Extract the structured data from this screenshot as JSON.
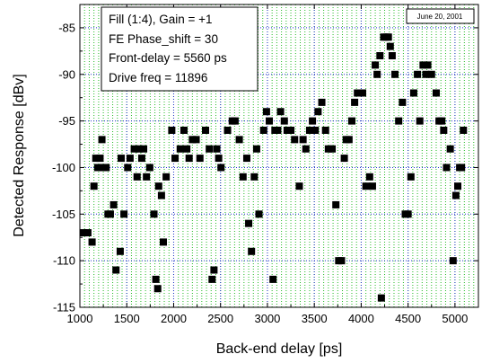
{
  "chart_data": {
    "type": "scatter",
    "title": "",
    "xlabel": "Back-end delay [ps]",
    "ylabel": "Detected Response  [dBv]",
    "xlim": [
      1000,
      5250
    ],
    "ylim": [
      -115,
      -82.5
    ],
    "xticks": [
      1000,
      1500,
      2000,
      2500,
      3000,
      3500,
      4000,
      4500,
      5000
    ],
    "yticks": [
      -85,
      -90,
      -95,
      -100,
      -105,
      -110,
      -115
    ],
    "xtick_labels": [
      "1000",
      "1500",
      "2000",
      "2500",
      "3000",
      "3500",
      "4000",
      "4500",
      "5000"
    ],
    "ytick_labels": [
      "-85",
      "-90",
      "-95",
      "-100",
      "-105",
      "-110",
      "-115"
    ],
    "grid": true,
    "marker": "square",
    "marker_color": "#000000",
    "grid_colors": {
      "x_dotted": "#22bb22",
      "y_dotted": "#2233cc"
    },
    "annotation_lines": [
      "Fill (1:4), Gain = +1",
      "FE Phase_shift = 30",
      "Front-delay = 5560 ps",
      "Drive freq = 11896"
    ],
    "date_label": "June 20, 2001",
    "series": [
      {
        "points": [
          [
            1040,
            -107
          ],
          [
            1085,
            -107
          ],
          [
            1130,
            -108
          ],
          [
            1150,
            -102
          ],
          [
            1170,
            -99
          ],
          [
            1190,
            -100
          ],
          [
            1215,
            -99
          ],
          [
            1235,
            -97
          ],
          [
            1250,
            -100
          ],
          [
            1280,
            -100
          ],
          [
            1300,
            -105
          ],
          [
            1325,
            -105
          ],
          [
            1360,
            -104
          ],
          [
            1385,
            -111
          ],
          [
            1430,
            -109
          ],
          [
            1440,
            -99
          ],
          [
            1470,
            -105
          ],
          [
            1510,
            -100
          ],
          [
            1535,
            -99
          ],
          [
            1580,
            -98
          ],
          [
            1610,
            -101
          ],
          [
            1630,
            -98
          ],
          [
            1660,
            -99
          ],
          [
            1680,
            -98
          ],
          [
            1710,
            -101
          ],
          [
            1745,
            -100
          ],
          [
            1790,
            -105
          ],
          [
            1810,
            -112
          ],
          [
            1830,
            -113
          ],
          [
            1840,
            -102
          ],
          [
            1870,
            -103
          ],
          [
            1890,
            -108
          ],
          [
            1920,
            -101
          ],
          [
            1980,
            -96
          ],
          [
            2015,
            -99
          ],
          [
            2070,
            -98
          ],
          [
            2110,
            -96
          ],
          [
            2140,
            -98
          ],
          [
            2165,
            -99
          ],
          [
            2200,
            -97
          ],
          [
            2240,
            -97
          ],
          [
            2280,
            -99
          ],
          [
            2340,
            -96
          ],
          [
            2380,
            -98
          ],
          [
            2410,
            -112
          ],
          [
            2430,
            -111
          ],
          [
            2460,
            -98
          ],
          [
            2480,
            -99
          ],
          [
            2505,
            -100
          ],
          [
            2575,
            -96
          ],
          [
            2625,
            -95
          ],
          [
            2655,
            -95
          ],
          [
            2700,
            -97
          ],
          [
            2740,
            -101
          ],
          [
            2780,
            -99
          ],
          [
            2800,
            -106
          ],
          [
            2830,
            -109
          ],
          [
            2860,
            -101
          ],
          [
            2885,
            -98
          ],
          [
            2910,
            -105
          ],
          [
            2960,
            -96
          ],
          [
            2990,
            -94
          ],
          [
            3020,
            -95
          ],
          [
            3060,
            -112
          ],
          [
            3080,
            -96
          ],
          [
            3110,
            -96
          ],
          [
            3140,
            -94
          ],
          [
            3180,
            -95
          ],
          [
            3210,
            -96
          ],
          [
            3250,
            -96
          ],
          [
            3290,
            -97
          ],
          [
            3340,
            -102
          ],
          [
            3380,
            -97
          ],
          [
            3410,
            -98
          ],
          [
            3450,
            -96
          ],
          [
            3480,
            -95
          ],
          [
            3510,
            -96
          ],
          [
            3540,
            -94
          ],
          [
            3580,
            -93
          ],
          [
            3620,
            -96
          ],
          [
            3650,
            -98
          ],
          [
            3690,
            -98
          ],
          [
            3730,
            -104
          ],
          [
            3760,
            -110
          ],
          [
            3790,
            -110
          ],
          [
            3820,
            -99
          ],
          [
            3840,
            -97
          ],
          [
            3870,
            -97
          ],
          [
            3900,
            -95
          ],
          [
            3930,
            -93
          ],
          [
            3960,
            -92
          ],
          [
            3990,
            -92
          ],
          [
            4015,
            -92
          ],
          [
            4050,
            -102
          ],
          [
            4090,
            -101
          ],
          [
            4120,
            -102
          ],
          [
            4150,
            -89
          ],
          [
            4170,
            -90
          ],
          [
            4200,
            -88
          ],
          [
            4215,
            -114
          ],
          [
            4240,
            -86
          ],
          [
            4270,
            -86
          ],
          [
            4290,
            -86
          ],
          [
            4310,
            -87
          ],
          [
            4330,
            -88
          ],
          [
            4360,
            -90
          ],
          [
            4400,
            -95
          ],
          [
            4440,
            -93
          ],
          [
            4470,
            -105
          ],
          [
            4500,
            -105
          ],
          [
            4530,
            -101
          ],
          [
            4560,
            -92
          ],
          [
            4600,
            -90
          ],
          [
            4625,
            -95
          ],
          [
            4660,
            -89
          ],
          [
            4690,
            -90
          ],
          [
            4710,
            -89
          ],
          [
            4750,
            -90
          ],
          [
            4800,
            -92
          ],
          [
            4830,
            -95
          ],
          [
            4860,
            -95
          ],
          [
            4880,
            -96
          ],
          [
            4910,
            -100
          ],
          [
            4950,
            -98
          ],
          [
            4980,
            -110
          ],
          [
            5010,
            -103
          ],
          [
            5030,
            -102
          ],
          [
            5050,
            -100
          ],
          [
            5070,
            -100
          ],
          [
            5090,
            -96
          ]
        ]
      }
    ]
  }
}
